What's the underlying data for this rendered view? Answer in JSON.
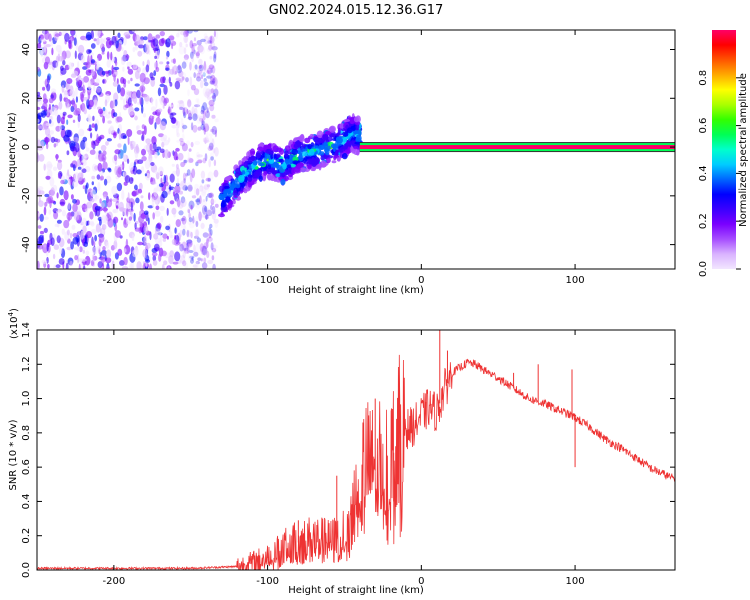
{
  "title": "GN02.2024.015.12.36.G17",
  "chart_data": [
    {
      "type": "heatmap",
      "xlabel": "Height of straight line (km)",
      "ylabel": "Frequency (Hz)",
      "xlim": [
        -250,
        165
      ],
      "ylim": [
        -50,
        48
      ],
      "xticks": [
        -200,
        -100,
        0,
        100
      ],
      "yticks": [
        -40,
        -20,
        0,
        20,
        40
      ],
      "colorbar": {
        "label": "Normalized spectral amplitude",
        "range": [
          0,
          1
        ],
        "ticks": [
          "0.0",
          "0.2",
          "0.4",
          "0.6",
          "0.8"
        ],
        "colors": [
          "#f2e6ff",
          "#d9b3ff",
          "#a64dff",
          "#7a00ff",
          "#3a00ff",
          "#0000ff",
          "#0066ff",
          "#00ccff",
          "#00ffcc",
          "#00ff55",
          "#33ff00",
          "#aaff00",
          "#ffff00",
          "#ffaa00",
          "#ff5500",
          "#ff0000",
          "#ff0066"
        ]
      },
      "regions": [
        {
          "kind": "noise",
          "x": [
            -250,
            -133
          ],
          "y": [
            -50,
            48
          ],
          "level": 0.35
        },
        {
          "kind": "band",
          "points": [
            [
              -130,
              -22
            ],
            [
              -120,
              -15
            ],
            [
              -110,
              -8
            ],
            [
              -100,
              -5
            ],
            [
              -90,
              -8
            ],
            [
              -80,
              -3
            ],
            [
              -70,
              -2
            ],
            [
              -60,
              0
            ],
            [
              -50,
              3
            ],
            [
              -45,
              6
            ],
            [
              -40,
              4
            ]
          ],
          "width": 14,
          "level": 0.3
        },
        {
          "kind": "line",
          "x": [
            -40,
            165
          ],
          "y": 0,
          "level": 1.0
        }
      ]
    },
    {
      "type": "line",
      "xlabel": "Height of straight line (km)",
      "ylabel": "SNR (10 * v/v)",
      "multiplier": "(x10",
      "multiplier_exp": "4",
      "multiplier_close": ")",
      "xlim": [
        -250,
        165
      ],
      "ylim": [
        0,
        1.4
      ],
      "xticks": [
        -200,
        -100,
        0,
        100
      ],
      "yticks": [
        "0.0",
        "0.2",
        "0.4",
        "0.6",
        "0.8",
        "1.0",
        "1.2",
        "1.4"
      ],
      "color": "#ee3333",
      "series": [
        {
          "x": [
            -250,
            -200,
            -150,
            -120,
            -110,
            -100,
            -90,
            -80,
            -70,
            -60,
            -50,
            -45,
            -40,
            -35,
            -30,
            -25,
            -20,
            -15,
            -10,
            -5,
            0,
            5,
            10,
            15,
            20,
            25,
            30,
            35,
            40,
            50,
            60,
            70,
            80,
            90,
            100,
            110,
            120,
            130,
            140,
            150,
            165
          ],
          "values": [
            0.01,
            0.01,
            0.01,
            0.02,
            0.04,
            0.07,
            0.12,
            0.16,
            0.18,
            0.16,
            0.2,
            0.38,
            0.55,
            0.62,
            0.58,
            0.7,
            0.62,
            0.78,
            0.82,
            0.84,
            0.9,
            0.95,
            0.92,
            1.05,
            1.15,
            1.18,
            1.21,
            1.2,
            1.17,
            1.12,
            1.06,
            1.0,
            0.97,
            0.93,
            0.89,
            0.83,
            0.76,
            0.71,
            0.65,
            0.59,
            0.53
          ]
        }
      ],
      "spikes": [
        [
          -100,
          0.1
        ],
        [
          -80,
          0.29
        ],
        [
          -55,
          0.55
        ],
        [
          -30,
          1.0
        ],
        [
          -18,
          0.4
        ],
        [
          3,
          0.98
        ],
        [
          12,
          1.4
        ],
        [
          17,
          1.28
        ],
        [
          60,
          1.15
        ],
        [
          76,
          1.2
        ],
        [
          98,
          1.17
        ],
        [
          100,
          0.6
        ]
      ]
    }
  ]
}
